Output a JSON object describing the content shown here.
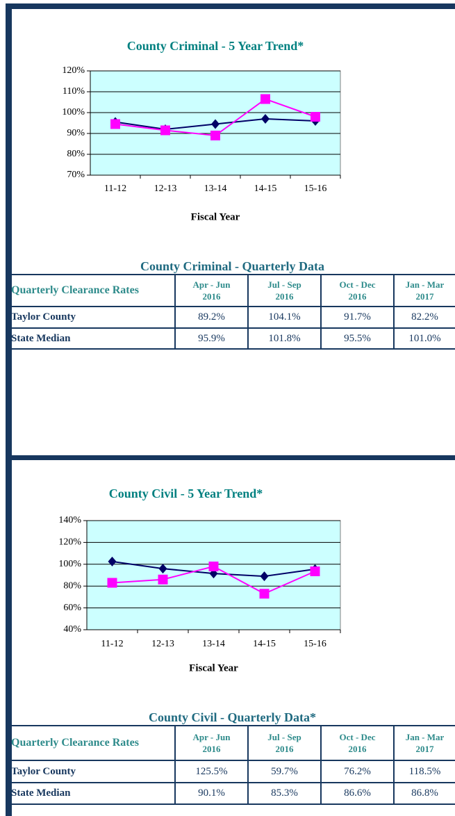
{
  "chart_data": [
    {
      "type": "line",
      "title": "County Criminal - 5 Year Trend*",
      "x_label": "Fiscal Year",
      "categories": [
        "11-12",
        "12-13",
        "13-14",
        "14-15",
        "15-16"
      ],
      "series": [
        {
          "color": "#000066",
          "marker": "diamond",
          "values": [
            95.5,
            92,
            94.5,
            97,
            96
          ]
        },
        {
          "color": "#ff00ff",
          "marker": "square",
          "values": [
            94.5,
            91.5,
            89,
            106.5,
            98
          ]
        }
      ],
      "ylim": [
        70,
        120
      ],
      "yticks": [
        {
          "value": 70,
          "label": "70%"
        },
        {
          "value": 80,
          "label": "80%"
        },
        {
          "value": 90,
          "label": "90%"
        },
        {
          "value": 100,
          "label": "100%"
        },
        {
          "value": 110,
          "label": "110%"
        },
        {
          "value": 120,
          "label": "120%"
        }
      ],
      "grid": true,
      "plot_color": "#ccffff"
    },
    {
      "type": "line",
      "title": "County Civil - 5 Year Trend*",
      "x_label": "Fiscal Year",
      "categories": [
        "11-12",
        "12-13",
        "13-14",
        "14-15",
        "15-16"
      ],
      "series": [
        {
          "color": "#000066",
          "marker": "diamond",
          "values": [
            102.5,
            96,
            91.5,
            89,
            95.5
          ]
        },
        {
          "color": "#ff00ff",
          "marker": "square",
          "values": [
            83,
            86,
            98,
            73,
            93.5
          ]
        }
      ],
      "ylim": [
        40,
        140
      ],
      "yticks": [
        {
          "value": 40,
          "label": "40%"
        },
        {
          "value": 60,
          "label": "60%"
        },
        {
          "value": 80,
          "label": "80%"
        },
        {
          "value": 100,
          "label": "100%"
        },
        {
          "value": 120,
          "label": "120%"
        },
        {
          "value": 140,
          "label": "140%"
        }
      ],
      "grid": true,
      "plot_color": "#ccffff"
    }
  ],
  "tables": [
    {
      "title": "County Criminal - Quarterly Data",
      "corner": "Quarterly Clearance Rates",
      "header": [
        [
          "Apr - Jun",
          "2016"
        ],
        [
          "Jul - Sep",
          "2016"
        ],
        [
          "Oct - Dec",
          "2016"
        ],
        [
          "Jan - Mar",
          "2017"
        ]
      ],
      "rows": [
        {
          "label": "Taylor County",
          "cells": [
            "89.2%",
            "104.1%",
            "91.7%",
            "82.2%"
          ]
        },
        {
          "label": "State Median",
          "cells": [
            "95.9%",
            "101.8%",
            "95.5%",
            "101.0%"
          ]
        }
      ]
    },
    {
      "title": "County Civil - Quarterly Data*",
      "corner": "Quarterly Clearance Rates",
      "header": [
        [
          "Apr - Jun",
          "2016"
        ],
        [
          "Jul - Sep",
          "2016"
        ],
        [
          "Oct - Dec",
          "2016"
        ],
        [
          "Jan - Mar",
          "2017"
        ]
      ],
      "rows": [
        {
          "label": "Taylor County",
          "cells": [
            "125.5%",
            "59.7%",
            "76.2%",
            "118.5%"
          ]
        },
        {
          "label": "State Median",
          "cells": [
            "90.1%",
            "85.3%",
            "86.6%",
            "86.8%"
          ]
        }
      ]
    }
  ]
}
